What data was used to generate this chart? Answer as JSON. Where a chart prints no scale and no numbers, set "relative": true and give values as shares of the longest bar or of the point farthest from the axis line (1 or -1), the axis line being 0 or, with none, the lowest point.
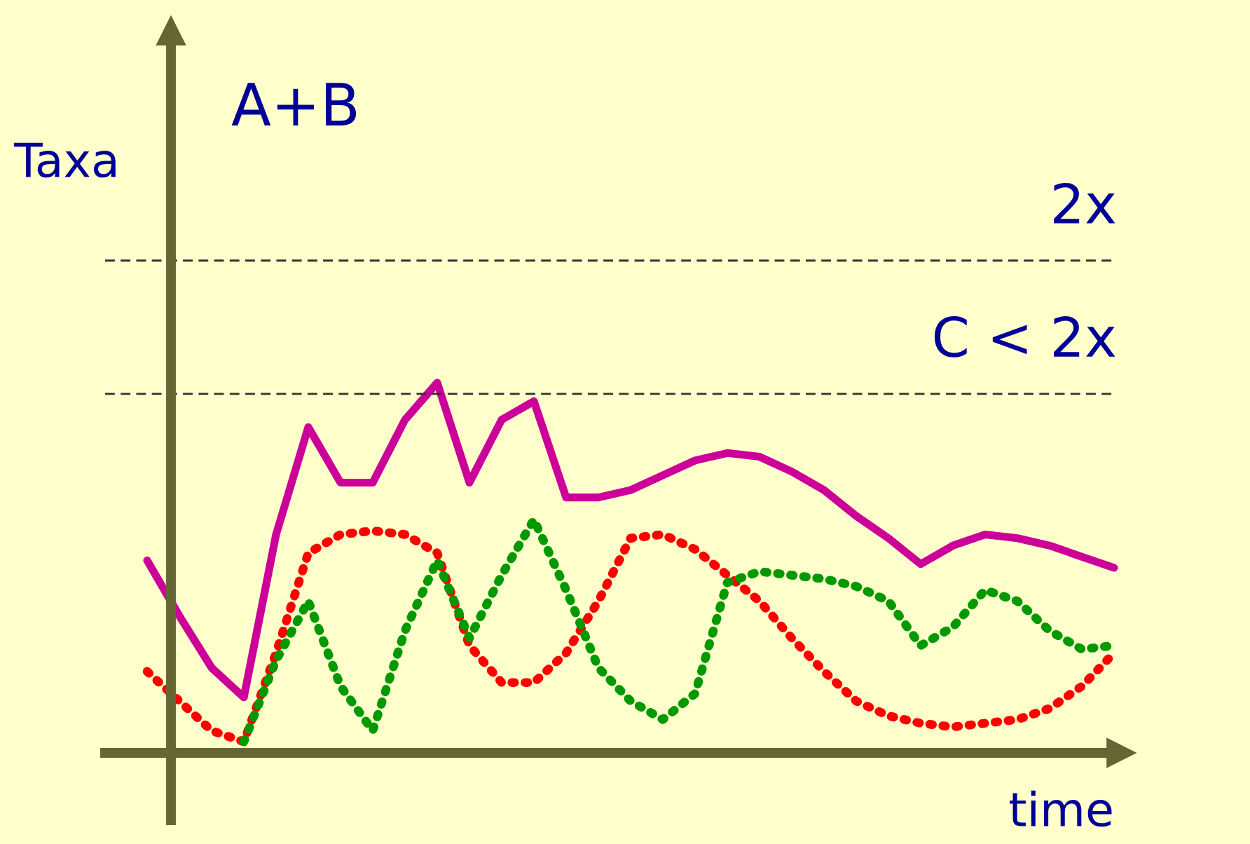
{
  "chart_data": {
    "type": "line",
    "title": "A+B",
    "ylabel": "Taxa",
    "xlabel": "time",
    "relative": true,
    "categories": [
      null,
      null,
      null,
      null,
      null,
      null,
      null,
      null,
      null,
      null,
      null,
      null,
      null,
      null,
      null,
      null,
      null,
      null,
      null,
      null,
      null,
      null,
      null,
      null,
      null,
      null,
      null,
      null,
      null,
      null,
      null
    ],
    "series": [
      {
        "color": "#cc0099",
        "line_style": "solid",
        "values": [
          0.52,
          0.37,
          0.23,
          0.15,
          0.59,
          0.88,
          0.73,
          0.73,
          0.9,
          1.0,
          0.73,
          0.9,
          0.95,
          0.69,
          0.69,
          0.71,
          0.75,
          0.79,
          0.81,
          0.8,
          0.76,
          0.71,
          0.64,
          0.58,
          0.51,
          0.56,
          0.59,
          0.58,
          0.56,
          0.53,
          0.5
        ]
      },
      {
        "color": "#ff0000",
        "line_style": "dotted",
        "values": [
          0.22,
          0.14,
          0.06,
          0.03,
          0.27,
          0.54,
          0.59,
          0.6,
          0.59,
          0.54,
          0.29,
          0.19,
          0.19,
          0.27,
          0.41,
          0.58,
          0.59,
          0.55,
          0.48,
          0.41,
          0.31,
          0.22,
          0.14,
          0.1,
          0.08,
          0.07,
          0.08,
          0.09,
          0.12,
          0.18,
          0.27
        ]
      },
      {
        "color": "#009900",
        "line_style": "dotted",
        "values": [
          null,
          null,
          null,
          0.03,
          0.25,
          0.41,
          0.18,
          0.06,
          0.33,
          0.52,
          0.31,
          0.48,
          0.63,
          0.44,
          0.23,
          0.14,
          0.09,
          0.16,
          0.46,
          0.49,
          0.48,
          0.47,
          0.45,
          0.41,
          0.29,
          0.34,
          0.44,
          0.41,
          0.33,
          0.28,
          0.29
        ]
      }
    ],
    "ref_lines": [
      {
        "axis": "y",
        "value": 1.33,
        "label": "2x",
        "color": "#333333",
        "line_style": "dashed"
      },
      {
        "axis": "y",
        "value": 0.97,
        "label": "C < 2x",
        "color": "#333333",
        "line_style": "dashed"
      }
    ]
  }
}
